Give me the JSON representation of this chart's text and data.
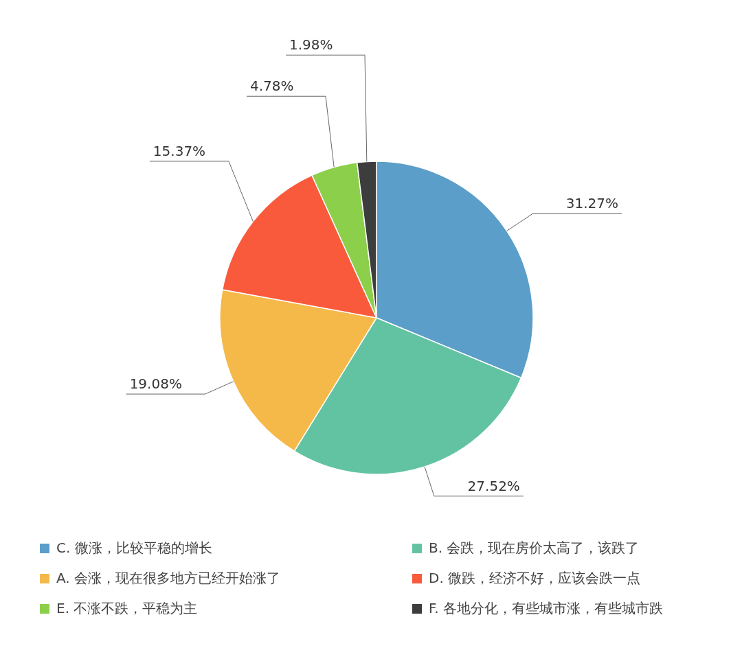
{
  "chart_data": {
    "type": "pie",
    "categories": [
      "C. 微涨，比较平稳的增长",
      "B. 会跌，现在房价太高了，该跌了",
      "A. 会涨，现在很多地方已经开始涨了",
      "D. 微跌，经济不好，应该会跌一点",
      "E. 不涨不跌，平稳为主",
      "F. 各地分化，有些城市涨，有些城市跌"
    ],
    "values": [
      31.27,
      27.52,
      19.08,
      15.37,
      4.78,
      1.98
    ],
    "colors": [
      "#5b9ec9",
      "#62c3a2",
      "#f5b94a",
      "#fa5a3c",
      "#8ccf4a",
      "#3d3d3d"
    ],
    "value_labels": [
      "31.27%",
      "27.52%",
      "19.08%",
      "15.37%",
      "4.78%",
      "1.98%"
    ],
    "legend": "bottom"
  }
}
